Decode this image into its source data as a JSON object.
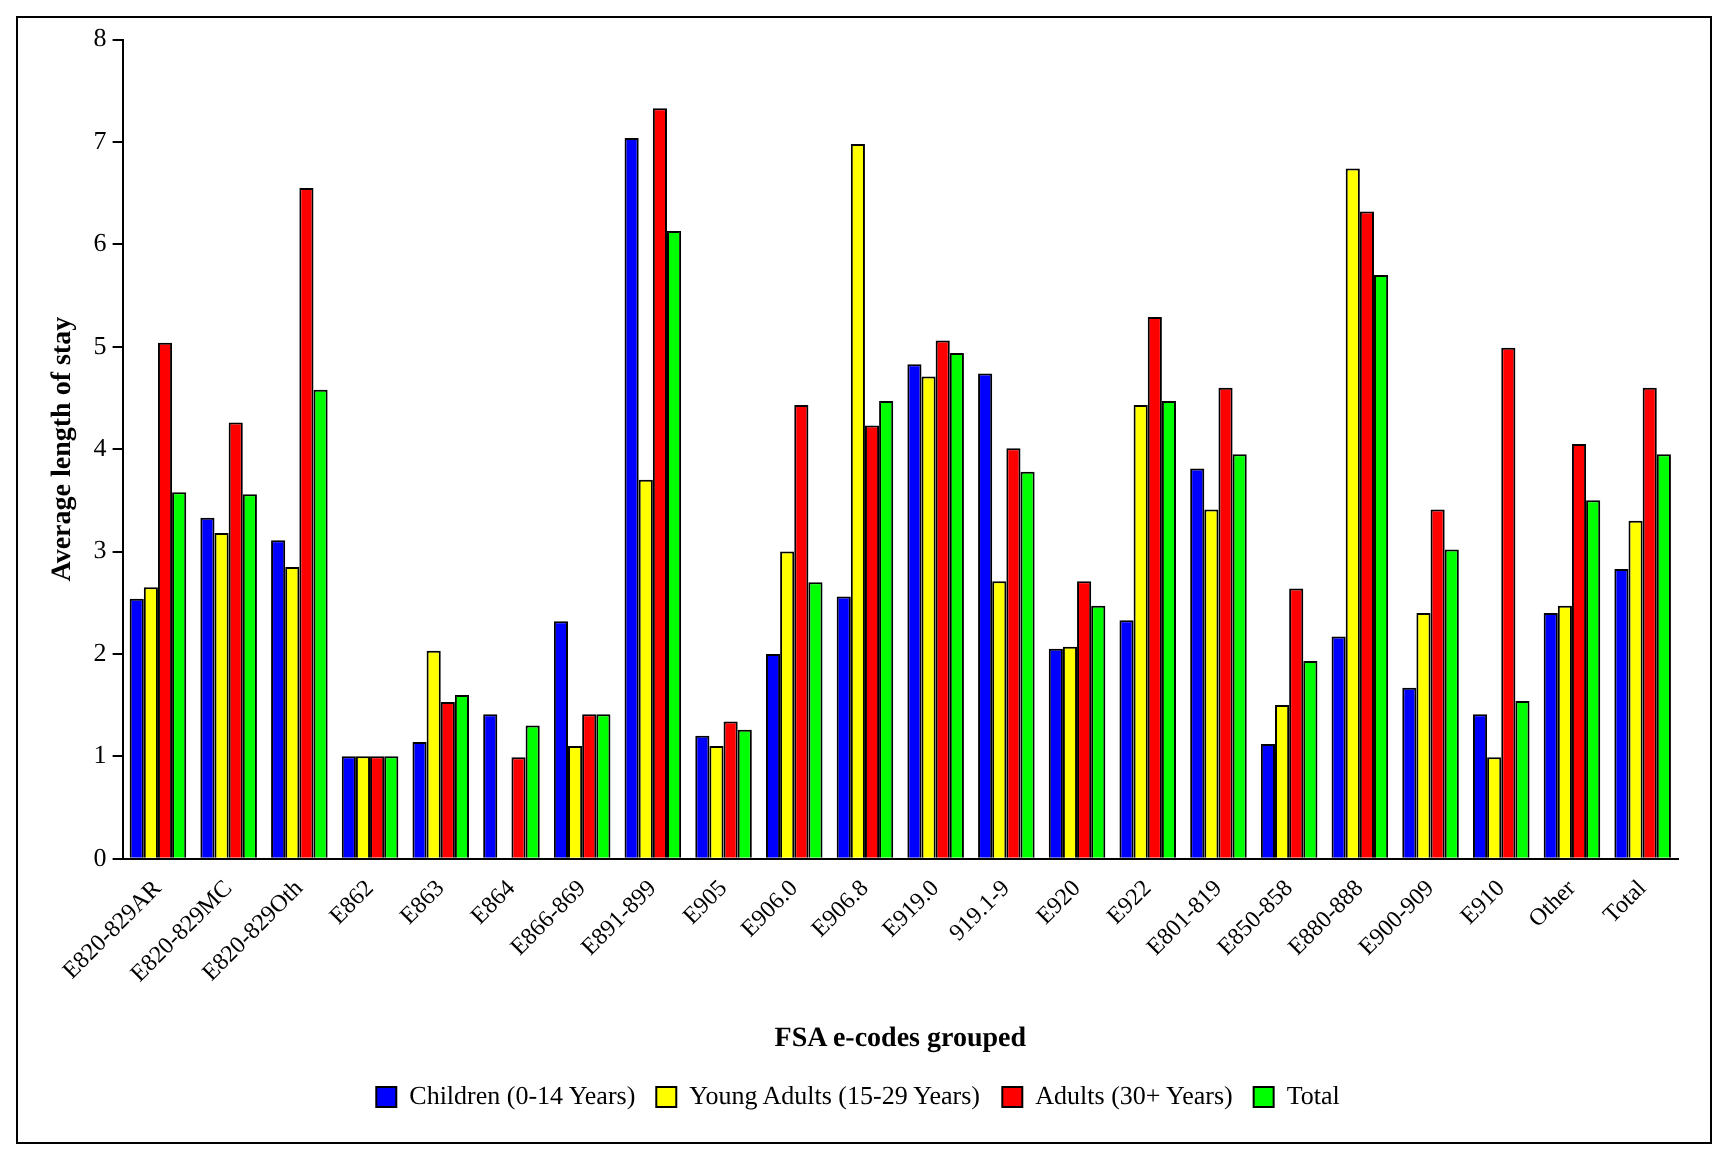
{
  "chart_data": {
    "type": "bar",
    "xlabel": "FSA e-codes grouped",
    "ylabel": "Average length of stay",
    "categories": [
      "E820-829AR",
      "E820-829MC",
      "E820-829Oth",
      "E862",
      "E863",
      "E864",
      "E866-869",
      "E891-899",
      "E905",
      "E906.0",
      "E906.8",
      "E919.0",
      "919.1-9",
      "E920",
      "E922",
      "E801-819",
      "E850-858",
      "E880-888",
      "E900-909",
      "E910",
      "Other",
      "Total"
    ],
    "series": [
      {
        "name": "Children (0-14 Years)",
        "color": "#0000ff",
        "values": [
          2.54,
          3.33,
          3.11,
          1.0,
          1.14,
          1.41,
          2.32,
          7.04,
          1.2,
          2.0,
          2.56,
          4.83,
          4.74,
          2.05,
          2.33,
          3.81,
          1.12,
          2.17,
          1.67,
          1.41,
          2.4,
          2.83
        ]
      },
      {
        "name": "Young Adults (15-29 Years)",
        "color": "#ffff00",
        "values": [
          2.65,
          3.18,
          2.85,
          1.0,
          2.03,
          null,
          1.1,
          3.7,
          1.1,
          3.0,
          6.98,
          4.71,
          2.71,
          2.07,
          4.43,
          3.41,
          1.5,
          6.74,
          2.4,
          0.99,
          2.47,
          3.3
        ]
      },
      {
        "name": "Adults (30+ Years)",
        "color": "#ff0000",
        "values": [
          5.04,
          4.26,
          6.55,
          1.0,
          1.53,
          0.99,
          1.41,
          7.33,
          1.34,
          4.43,
          4.23,
          5.06,
          4.01,
          2.71,
          5.29,
          4.6,
          2.64,
          6.32,
          3.41,
          4.99,
          4.05,
          4.6
        ]
      },
      {
        "name": "Total",
        "color": "#00ff00",
        "values": [
          3.58,
          3.56,
          4.58,
          1.0,
          1.6,
          1.3,
          1.41,
          6.13,
          1.26,
          2.7,
          4.47,
          4.94,
          3.78,
          2.47,
          4.47,
          3.95,
          1.93,
          5.7,
          3.02,
          1.54,
          3.5,
          3.95
        ]
      }
    ],
    "ylim": [
      0,
      8
    ],
    "yticks": [
      0,
      1,
      2,
      3,
      4,
      5,
      6,
      7,
      8
    ],
    "grid": false,
    "legend": "bottom"
  }
}
